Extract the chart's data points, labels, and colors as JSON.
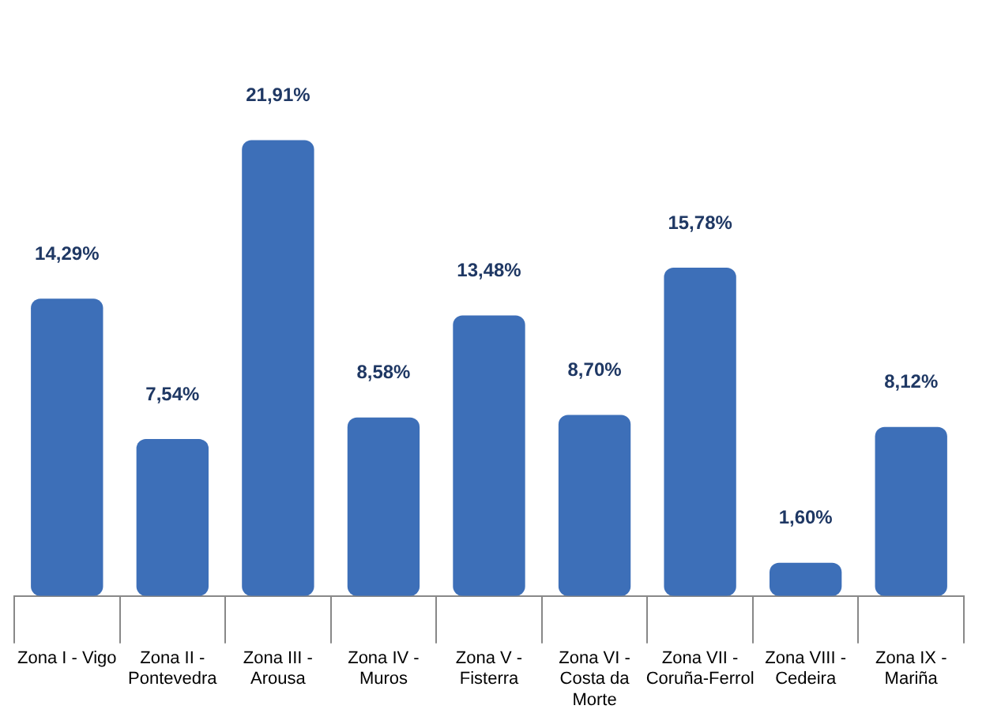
{
  "chart_data": {
    "type": "bar",
    "categories": [
      "Zona I - Vigo",
      "Zona II - Pontevedra",
      "Zona III - Arousa",
      "Zona IV - Muros",
      "Zona V - Fisterra",
      "Zona VI - Costa da Morte",
      "Zona VII - Coruña-Ferrol",
      "Zona VIII - Cedeira",
      "Zona IX - Mariña"
    ],
    "values": [
      14.29,
      7.54,
      21.91,
      8.58,
      13.48,
      8.7,
      15.78,
      1.6,
      8.12
    ],
    "value_labels": [
      "14,29%",
      "7,54%",
      "21,91%",
      "8,58%",
      "13,48%",
      "8,70%",
      "15,78%",
      "1,60%",
      "8,12%"
    ],
    "color": "#3d6fb8",
    "grid": false,
    "legend": false
  }
}
